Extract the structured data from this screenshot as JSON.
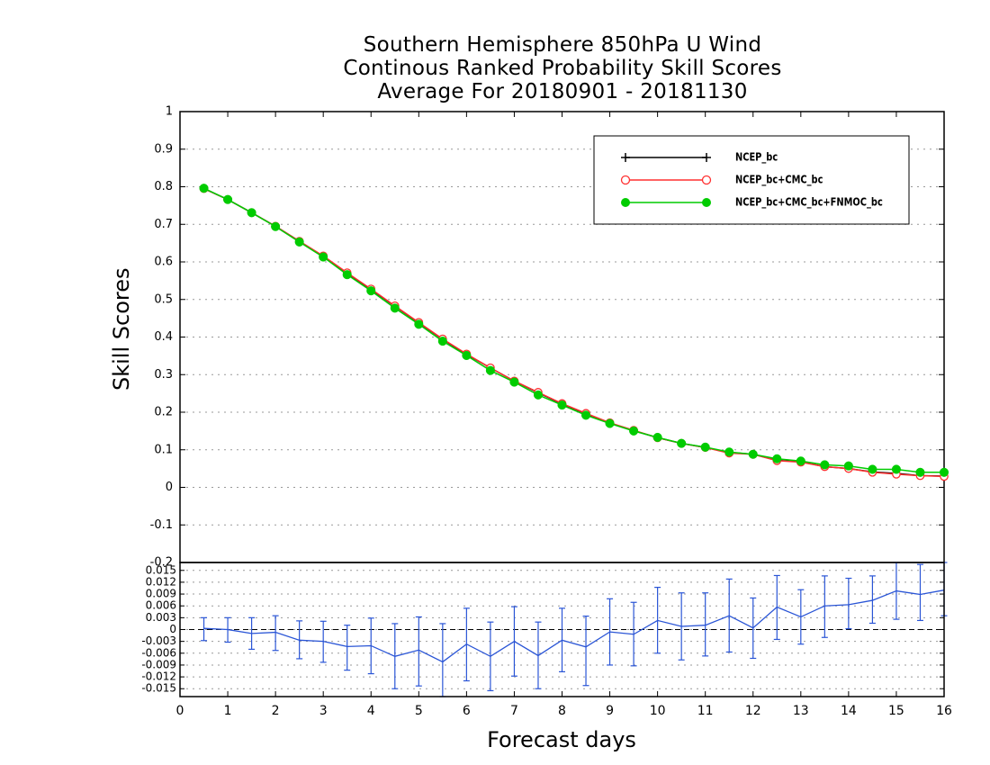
{
  "title_lines": [
    "Southern Hemisphere 850hPa U Wind",
    "Continous Ranked Probability Skill Scores",
    "Average For 20180901 - 20181130"
  ],
  "colors": {
    "ncep_bc": "#000000",
    "ncep_cmc": "#ff3030",
    "ncep_cmc_fnmoc": "#00cc00",
    "difference": "#2a55d6",
    "grid": "#999999",
    "axis": "#000000"
  },
  "chart_data": [
    {
      "type": "line",
      "title": "Southern Hemisphere 850hPa U Wind Continous Ranked Probability Skill Scores Average For 20180901 - 20181130",
      "ylabel": "Skill Scores",
      "xlabel": "",
      "xlim": [
        0,
        16
      ],
      "ylim": [
        -0.2,
        1
      ],
      "yticks": [
        "-0.2",
        "-0.1",
        "0",
        "0.1",
        "0.2",
        "0.3",
        "0.4",
        "0.5",
        "0.6",
        "0.7",
        "0.8",
        "0.9",
        "1"
      ],
      "grid": true,
      "legend_position": "top-right",
      "x": [
        0.5,
        1.0,
        1.5,
        2.0,
        2.5,
        3.0,
        3.5,
        4.0,
        4.5,
        5.0,
        5.5,
        6.0,
        6.5,
        7.0,
        7.5,
        8.0,
        8.5,
        9.0,
        9.5,
        10.0,
        10.5,
        11.0,
        11.5,
        12.0,
        12.5,
        13.0,
        13.5,
        14.0,
        14.5,
        15.0,
        15.5,
        16.0
      ],
      "series": [
        {
          "name": "NCEP_bc",
          "marker": "plus",
          "values": [
            0.795,
            0.766,
            0.731,
            0.695,
            0.655,
            0.615,
            0.57,
            0.527,
            0.482,
            0.438,
            0.394,
            0.354,
            0.318,
            0.283,
            0.252,
            0.222,
            0.196,
            0.171,
            0.151,
            0.132,
            0.117,
            0.106,
            0.093,
            0.088,
            0.072,
            0.068,
            0.055,
            0.05,
            0.041,
            0.037,
            0.031,
            0.03
          ]
        },
        {
          "name": "NCEP_bc+CMC_bc",
          "marker": "open-circle",
          "values": [
            0.795,
            0.766,
            0.731,
            0.695,
            0.655,
            0.616,
            0.571,
            0.528,
            0.483,
            0.439,
            0.395,
            0.355,
            0.318,
            0.283,
            0.253,
            0.223,
            0.197,
            0.172,
            0.152,
            0.132,
            0.117,
            0.106,
            0.091,
            0.088,
            0.071,
            0.067,
            0.055,
            0.05,
            0.04,
            0.035,
            0.031,
            0.029
          ]
        },
        {
          "name": "NCEP_bc+CMC_bc+FNMOC_bc",
          "marker": "filled-circle",
          "values": [
            0.796,
            0.766,
            0.731,
            0.694,
            0.653,
            0.613,
            0.566,
            0.523,
            0.477,
            0.434,
            0.389,
            0.351,
            0.311,
            0.28,
            0.246,
            0.219,
            0.192,
            0.17,
            0.15,
            0.133,
            0.117,
            0.107,
            0.094,
            0.088,
            0.076,
            0.07,
            0.06,
            0.057,
            0.048,
            0.048,
            0.04,
            0.04
          ]
        }
      ]
    },
    {
      "type": "line",
      "title": "",
      "xlabel": "Forecast days",
      "ylabel": "",
      "xlim": [
        0,
        16
      ],
      "ylim": [
        -0.017,
        0.017
      ],
      "xticks": [
        "0",
        "1",
        "2",
        "3",
        "4",
        "5",
        "6",
        "7",
        "8",
        "9",
        "10",
        "11",
        "12",
        "13",
        "14",
        "15",
        "16"
      ],
      "yticks": [
        "-0.015",
        "-0.012",
        "-0.009",
        "-0.006",
        "-0.003",
        "0",
        "0.003",
        "0.006",
        "0.009",
        "0.012",
        "0.015"
      ],
      "reference_line": 0,
      "x": [
        0.5,
        1.0,
        1.5,
        2.0,
        2.5,
        3.0,
        3.5,
        4.0,
        4.5,
        5.0,
        5.5,
        6.0,
        6.5,
        7.0,
        7.5,
        8.0,
        8.5,
        9.0,
        9.5,
        10.0,
        10.5,
        11.0,
        11.5,
        12.0,
        12.5,
        13.0,
        13.5,
        14.0,
        14.5,
        15.0,
        15.5,
        16.0
      ],
      "series": [
        {
          "name": "",
          "values": [
            0.0003,
            0.0,
            -0.001,
            -0.0007,
            -0.0027,
            -0.003,
            -0.0043,
            -0.0041,
            -0.0068,
            -0.0052,
            -0.0082,
            -0.0037,
            -0.0068,
            -0.003,
            -0.0066,
            -0.0027,
            -0.0044,
            -0.0006,
            -0.0012,
            0.0023,
            0.0008,
            0.0011,
            0.0035,
            0.0004,
            0.0057,
            0.0032,
            0.006,
            0.0063,
            0.0074,
            0.0098,
            0.0089,
            0.01
          ],
          "error_low": [
            -0.0028,
            -0.0032,
            -0.005,
            -0.0053,
            -0.0074,
            -0.0083,
            -0.0103,
            -0.0112,
            -0.015,
            -0.0143,
            -0.017,
            -0.013,
            -0.0155,
            -0.0118,
            -0.015,
            -0.0107,
            -0.0142,
            -0.009,
            -0.0092,
            -0.006,
            -0.0077,
            -0.0067,
            -0.0057,
            -0.0073,
            -0.0025,
            -0.0037,
            -0.002,
            0.0002,
            0.0016,
            0.0026,
            0.0023,
            0.0035
          ],
          "error_high": [
            0.003,
            0.003,
            0.003,
            0.0035,
            0.0022,
            0.0021,
            0.0011,
            0.0029,
            0.0015,
            0.0032,
            0.0015,
            0.0054,
            0.0019,
            0.0058,
            0.0019,
            0.0054,
            0.0034,
            0.0078,
            0.0069,
            0.0107,
            0.0093,
            0.0093,
            0.0128,
            0.008,
            0.0137,
            0.0101,
            0.0136,
            0.013,
            0.0136,
            0.017,
            0.0165,
            0.017
          ]
        }
      ]
    }
  ]
}
